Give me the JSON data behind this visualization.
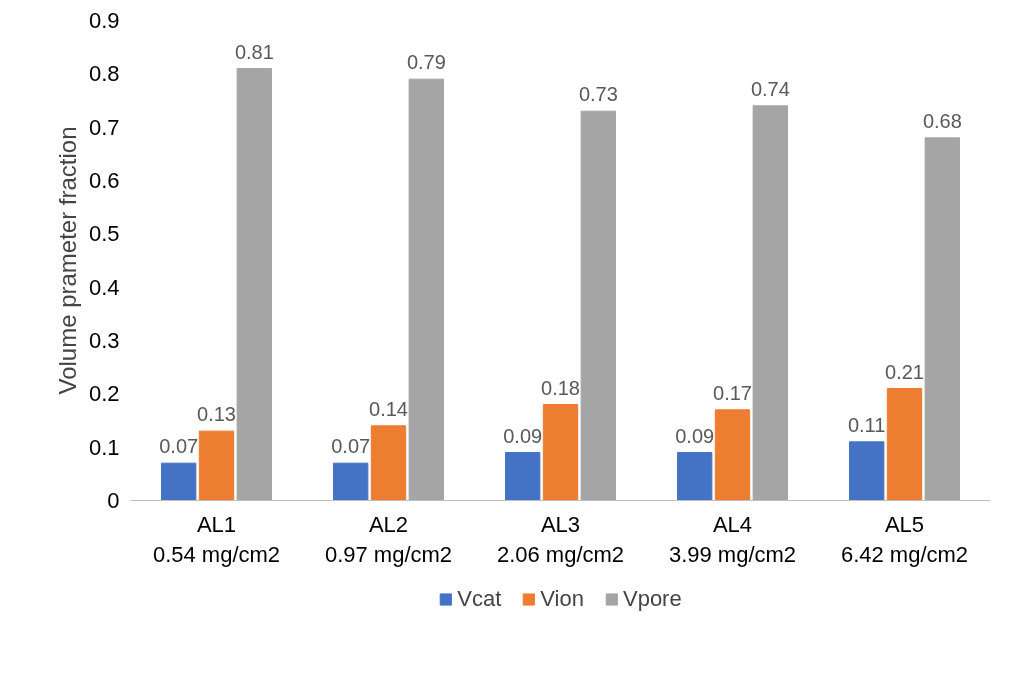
{
  "chart_data": {
    "type": "bar",
    "ylabel": "Volume prameter fraction",
    "categories": [
      "AL1\n0.54 mg/cm2",
      "AL2\n0.97 mg/cm2",
      "AL3\n2.06 mg/cm2",
      "AL4\n3.99 mg/cm2",
      "AL5\n6.42 mg/cm2"
    ],
    "series": [
      {
        "name": "Vcat",
        "color": "#4472c4",
        "values": [
          0.07,
          0.07,
          0.09,
          0.09,
          0.11
        ]
      },
      {
        "name": "Vion",
        "color": "#ed7d31",
        "values": [
          0.13,
          0.14,
          0.18,
          0.17,
          0.21
        ]
      },
      {
        "name": "Vpore",
        "color": "#a5a5a5",
        "values": [
          0.81,
          0.79,
          0.73,
          0.74,
          0.68
        ]
      }
    ],
    "ylim": [
      0,
      0.9
    ],
    "yticks": [
      0,
      0.1,
      0.2,
      0.3,
      0.4,
      0.5,
      0.6,
      0.7,
      0.8,
      0.9
    ],
    "grid": false,
    "legend": "bottom",
    "data_labels": true
  }
}
